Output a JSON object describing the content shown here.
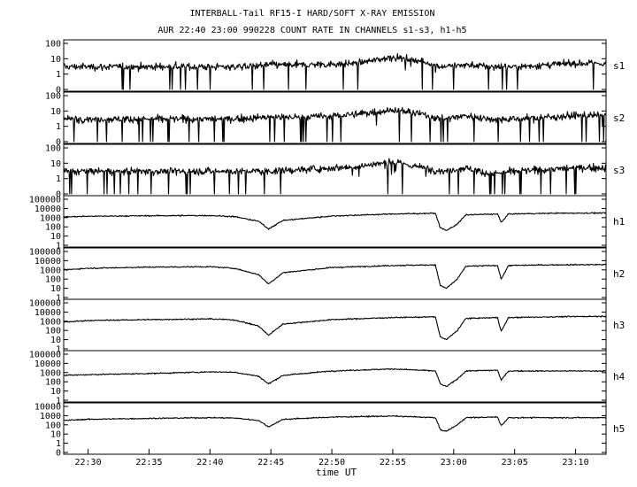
{
  "chart_data": {
    "type": "line",
    "title": "INTERBALL-Tail RF15-I HARD/SOFT X-RAY EMISSION",
    "subtitle": "AUR 22:40 23:00 990228  COUNT RATE IN CHANNELS s1-s3, h1-h5",
    "xlabel": "time UT",
    "x_ticks": [
      "22:30",
      "22:35",
      "22:40",
      "22:45",
      "22:50",
      "22:55",
      "23:00",
      "23:05",
      "23:10"
    ],
    "x_range_minutes_after_2200": [
      28,
      72.5
    ],
    "y_scale": "log",
    "grid": false,
    "panels": [
      {
        "name": "s1",
        "ytick_labels": [
          "100",
          "10",
          "1",
          "0"
        ],
        "ylim": [
          0,
          100
        ],
        "x": [
          28,
          35,
          42,
          45,
          48,
          52,
          55,
          57,
          59,
          61,
          63,
          65,
          68,
          70,
          72.5
        ],
        "values": [
          3,
          3,
          3,
          4,
          4,
          5,
          13,
          8,
          3,
          4,
          3,
          3,
          4,
          5,
          5
        ]
      },
      {
        "name": "s2",
        "ytick_labels": [
          "100",
          "10",
          "1",
          "0"
        ],
        "ylim": [
          0,
          100
        ],
        "x": [
          28,
          35,
          42,
          45,
          48,
          52,
          55,
          57,
          59,
          61,
          63,
          65,
          68,
          70,
          72.5
        ],
        "values": [
          3,
          3,
          3,
          4,
          4,
          6,
          12,
          7,
          3,
          5,
          3,
          3,
          4,
          5,
          5
        ]
      },
      {
        "name": "s3",
        "ytick_labels": [
          "100",
          "10",
          "1",
          "0"
        ],
        "ylim": [
          0,
          100
        ],
        "x": [
          28,
          35,
          42,
          45,
          48,
          52,
          55,
          57,
          59,
          61,
          63,
          65,
          68,
          70,
          72.5
        ],
        "values": [
          3,
          3,
          3,
          3,
          4,
          6,
          12,
          6,
          3,
          5,
          2,
          3,
          4,
          5,
          5
        ]
      },
      {
        "name": "h1",
        "ytick_labels": [
          "100000",
          "10000",
          "1000",
          "100",
          "10",
          "1"
        ],
        "ylim": [
          1,
          100000
        ],
        "x": [
          28,
          30,
          35,
          40,
          42,
          44,
          44.8,
          46,
          50,
          55,
          58.5,
          58.9,
          59.4,
          60.3,
          61,
          63.6,
          63.9,
          64.5,
          68,
          72.5
        ],
        "values": [
          1200,
          1400,
          1600,
          1700,
          1300,
          400,
          60,
          500,
          1500,
          2500,
          3000,
          80,
          40,
          200,
          2000,
          2500,
          300,
          2500,
          3000,
          3200
        ]
      },
      {
        "name": "h2",
        "ytick_labels": [
          "100000",
          "10000",
          "1000",
          "100",
          "10",
          "1"
        ],
        "ylim": [
          1,
          100000
        ],
        "x": [
          28,
          30,
          35,
          40,
          42,
          44,
          44.8,
          46,
          50,
          55,
          58.5,
          58.9,
          59.4,
          60.3,
          61,
          63.6,
          63.9,
          64.5,
          68,
          72.5
        ],
        "values": [
          1000,
          1500,
          2000,
          2200,
          1500,
          300,
          30,
          500,
          1800,
          3000,
          3500,
          20,
          10,
          100,
          2500,
          3000,
          100,
          3000,
          3500,
          3800
        ]
      },
      {
        "name": "h3",
        "ytick_labels": [
          "100000",
          "10000",
          "1000",
          "100",
          "10",
          "1"
        ],
        "ylim": [
          1,
          100000
        ],
        "x": [
          28,
          30,
          35,
          40,
          42,
          44,
          44.8,
          46,
          50,
          55,
          58.5,
          58.9,
          59.4,
          60.3,
          61,
          63.6,
          63.9,
          64.5,
          68,
          72.5
        ],
        "values": [
          800,
          1200,
          1500,
          1800,
          1400,
          300,
          30,
          500,
          1500,
          2500,
          3000,
          20,
          10,
          100,
          2000,
          2500,
          80,
          2500,
          3000,
          3500
        ]
      },
      {
        "name": "h4",
        "ytick_labels": [
          "100000",
          "10000",
          "1000",
          "100",
          "10",
          "1"
        ],
        "ylim": [
          1,
          100000
        ],
        "x": [
          28,
          30,
          35,
          40,
          42,
          44,
          44.8,
          46,
          50,
          55,
          58.5,
          58.9,
          59.4,
          60.3,
          61,
          63.6,
          63.9,
          64.5,
          68,
          72.5
        ],
        "values": [
          500,
          600,
          800,
          1200,
          1100,
          400,
          60,
          500,
          1500,
          2500,
          1500,
          60,
          30,
          200,
          1500,
          1800,
          150,
          1500,
          1500,
          1500
        ]
      },
      {
        "name": "h5",
        "ytick_labels": [
          "10000",
          "1000",
          "100",
          "10",
          "1",
          "0"
        ],
        "ylim": [
          0,
          10000
        ],
        "x": [
          28,
          30,
          35,
          40,
          42,
          44,
          44.8,
          46,
          50,
          55,
          58.5,
          58.9,
          59.4,
          60.3,
          61,
          63.6,
          63.9,
          64.5,
          68,
          72.5
        ],
        "values": [
          300,
          400,
          500,
          600,
          550,
          300,
          60,
          400,
          700,
          900,
          600,
          30,
          20,
          100,
          600,
          700,
          80,
          600,
          600,
          600
        ]
      }
    ]
  }
}
